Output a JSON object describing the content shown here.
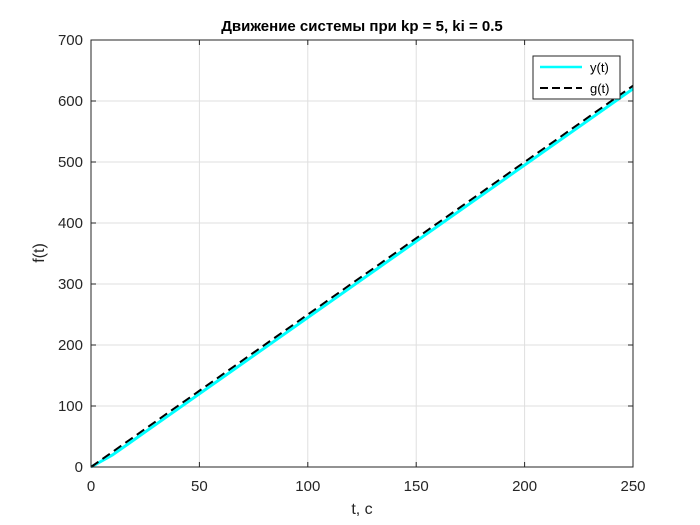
{
  "chart_data": {
    "type": "line",
    "title": "Движение системы при kp = 5, ki = 0.5",
    "xlabel": "t, c",
    "ylabel": "f(t)",
    "xlim": [
      0,
      250
    ],
    "ylim": [
      0,
      700
    ],
    "xticks": [
      0,
      50,
      100,
      150,
      200,
      250
    ],
    "yticks": [
      0,
      100,
      200,
      300,
      400,
      500,
      600,
      700
    ],
    "grid": true,
    "legend_location": "top-right",
    "series": [
      {
        "name": "y(t)",
        "color": "#00ffff",
        "style": "solid",
        "x": [
          0,
          10,
          25,
          50,
          75,
          100,
          125,
          150,
          175,
          200,
          225,
          250
        ],
        "y": [
          0,
          20,
          57.5,
          120,
          182.5,
          245,
          307.5,
          370,
          432.5,
          495,
          557.5,
          620
        ]
      },
      {
        "name": "g(t)",
        "color": "#000000",
        "style": "dashed",
        "x": [
          0,
          50,
          100,
          150,
          200,
          250
        ],
        "y": [
          0,
          125,
          250,
          375,
          500,
          625
        ]
      }
    ]
  }
}
